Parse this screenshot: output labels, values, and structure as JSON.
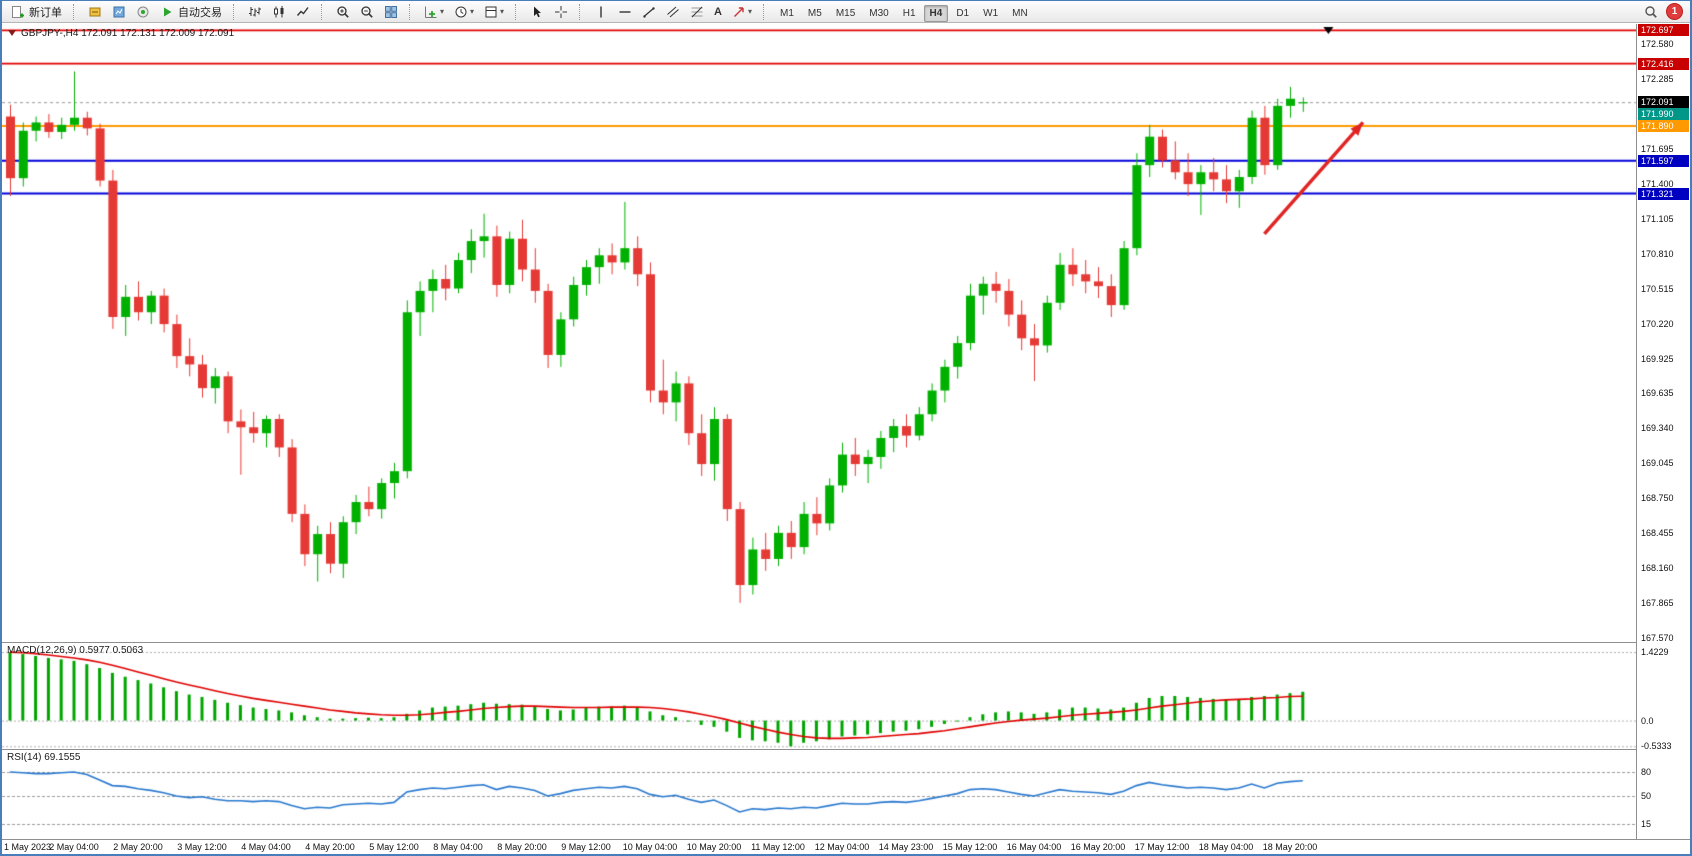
{
  "toolbar": {
    "new_order_label": "新订单",
    "autotrade_label": "自动交易",
    "text_tool_label": "A",
    "timeframes": [
      "M1",
      "M5",
      "M15",
      "M30",
      "H1",
      "H4",
      "D1",
      "W1",
      "MN"
    ],
    "active_timeframe": "H4",
    "notification_count": "1"
  },
  "chart_data": [
    {
      "type": "candlestick",
      "title": "GBPJPY-,H4",
      "ohlc_text": "172.091 172.131 172.009 172.091",
      "colors": {
        "up": "#00b000",
        "down": "#e53935"
      },
      "y_range": [
        167.54,
        172.75
      ],
      "y_ticks": [
        "172.580",
        "172.285",
        "171.990",
        "171.695",
        "171.400",
        "171.105",
        "170.810",
        "170.515",
        "170.220",
        "169.925",
        "169.635",
        "169.340",
        "169.045",
        "168.750",
        "168.455",
        "168.160",
        "167.865",
        "167.570"
      ],
      "hlines": [
        {
          "price": 172.697,
          "color": "#e00000",
          "tag_bg": "#c80000",
          "label": "172.697"
        },
        {
          "price": 172.416,
          "color": "#e00000",
          "tag_bg": "#c80000",
          "label": "172.416"
        },
        {
          "price": 171.89,
          "color": "#ff9900",
          "tag_bg": "#ff9900",
          "label": "171.890"
        },
        {
          "price": 171.597,
          "color": "#0000d8",
          "tag_bg": "#0000c0",
          "label": "171.597"
        },
        {
          "price": 171.321,
          "color": "#0000d8",
          "tag_bg": "#0000c0",
          "label": "171.321"
        }
      ],
      "current_price": {
        "value": 172.091,
        "label": "172.091",
        "tag_bg": "#000000"
      },
      "bid_tag": {
        "value": 171.99,
        "label": "171.990",
        "tag_bg": "#009688"
      },
      "arrow": {
        "from": [
          98,
          170.98
        ],
        "to": [
          105.7,
          171.92
        ],
        "color": "#e02424"
      },
      "shift_marker_index": 103,
      "x_label_step": 5,
      "x_labels": [
        "1 May 2023",
        "2 May 04:00",
        "2 May 20:00",
        "3 May 12:00",
        "4 May 04:00",
        "4 May 20:00",
        "5 May 12:00",
        "8 May 04:00",
        "8 May 20:00",
        "9 May 12:00",
        "10 May 04:00",
        "10 May 20:00",
        "11 May 12:00",
        "12 May 04:00",
        "14 May 23:00",
        "15 May 12:00",
        "16 May 04:00",
        "16 May 20:00",
        "17 May 12:00",
        "18 May 04:00",
        "18 May 20:00"
      ],
      "ohlc": [
        [
          171.97,
          172.07,
          171.3,
          171.45
        ],
        [
          171.45,
          171.92,
          171.38,
          171.85
        ],
        [
          171.85,
          171.97,
          171.76,
          171.92
        ],
        [
          171.92,
          171.99,
          171.79,
          171.84
        ],
        [
          171.84,
          171.96,
          171.78,
          171.9
        ],
        [
          171.9,
          172.35,
          171.85,
          171.96
        ],
        [
          171.96,
          172.01,
          171.81,
          171.87
        ],
        [
          171.87,
          171.91,
          171.38,
          171.43
        ],
        [
          171.43,
          171.52,
          170.18,
          170.28
        ],
        [
          170.28,
          170.55,
          170.12,
          170.45
        ],
        [
          170.45,
          170.58,
          170.25,
          170.32
        ],
        [
          170.32,
          170.5,
          170.22,
          170.46
        ],
        [
          170.46,
          170.52,
          170.15,
          170.22
        ],
        [
          170.22,
          170.3,
          169.85,
          169.95
        ],
        [
          169.95,
          170.1,
          169.78,
          169.88
        ],
        [
          169.88,
          169.96,
          169.6,
          169.68
        ],
        [
          169.68,
          169.85,
          169.55,
          169.78
        ],
        [
          169.78,
          169.82,
          169.3,
          169.4
        ],
        [
          169.4,
          169.5,
          168.95,
          169.35
        ],
        [
          169.35,
          169.48,
          169.22,
          169.3
        ],
        [
          169.3,
          169.45,
          169.18,
          169.42
        ],
        [
          169.42,
          169.46,
          169.1,
          169.18
        ],
        [
          169.18,
          169.25,
          168.55,
          168.62
        ],
        [
          168.62,
          168.7,
          168.18,
          168.28
        ],
        [
          168.28,
          168.52,
          168.05,
          168.45
        ],
        [
          168.45,
          168.55,
          168.12,
          168.2
        ],
        [
          168.2,
          168.6,
          168.08,
          168.55
        ],
        [
          168.55,
          168.78,
          168.45,
          168.72
        ],
        [
          168.72,
          168.85,
          168.6,
          168.66
        ],
        [
          168.66,
          168.92,
          168.58,
          168.88
        ],
        [
          168.88,
          169.05,
          168.75,
          168.98
        ],
        [
          168.98,
          170.42,
          168.92,
          170.32
        ],
        [
          170.32,
          170.58,
          170.12,
          170.5
        ],
        [
          170.5,
          170.68,
          170.32,
          170.6
        ],
        [
          170.6,
          170.72,
          170.42,
          170.52
        ],
        [
          170.52,
          170.82,
          170.48,
          170.76
        ],
        [
          170.76,
          171.02,
          170.65,
          170.92
        ],
        [
          170.92,
          171.15,
          170.78,
          170.96
        ],
        [
          170.96,
          171.05,
          170.45,
          170.55
        ],
        [
          170.55,
          171.0,
          170.48,
          170.94
        ],
        [
          170.94,
          171.1,
          170.58,
          170.68
        ],
        [
          170.68,
          170.86,
          170.4,
          170.5
        ],
        [
          170.5,
          170.56,
          169.85,
          169.96
        ],
        [
          169.96,
          170.32,
          169.86,
          170.26
        ],
        [
          170.26,
          170.62,
          170.2,
          170.55
        ],
        [
          170.55,
          170.76,
          170.46,
          170.7
        ],
        [
          170.7,
          170.86,
          170.56,
          170.8
        ],
        [
          170.8,
          170.9,
          170.64,
          170.74
        ],
        [
          170.74,
          171.25,
          170.68,
          170.86
        ],
        [
          170.86,
          170.96,
          170.54,
          170.64
        ],
        [
          170.64,
          170.74,
          169.56,
          169.66
        ],
        [
          169.66,
          169.92,
          169.46,
          169.56
        ],
        [
          169.56,
          169.82,
          169.4,
          169.72
        ],
        [
          169.72,
          169.78,
          169.2,
          169.3
        ],
        [
          169.3,
          169.46,
          168.94,
          169.04
        ],
        [
          169.04,
          169.52,
          168.9,
          169.42
        ],
        [
          169.42,
          169.46,
          168.56,
          168.66
        ],
        [
          168.66,
          168.72,
          167.87,
          168.02
        ],
        [
          168.02,
          168.42,
          167.94,
          168.32
        ],
        [
          168.32,
          168.46,
          168.14,
          168.24
        ],
        [
          168.24,
          168.52,
          168.18,
          168.46
        ],
        [
          168.46,
          168.56,
          168.24,
          168.34
        ],
        [
          168.34,
          168.72,
          168.28,
          168.62
        ],
        [
          168.62,
          168.76,
          168.44,
          168.54
        ],
        [
          168.54,
          168.92,
          168.48,
          168.86
        ],
        [
          168.86,
          169.22,
          168.8,
          169.12
        ],
        [
          169.12,
          169.26,
          168.94,
          169.04
        ],
        [
          169.04,
          169.16,
          168.88,
          169.1
        ],
        [
          169.1,
          169.32,
          169.0,
          169.26
        ],
        [
          169.26,
          169.42,
          169.14,
          169.36
        ],
        [
          169.36,
          169.46,
          169.18,
          169.28
        ],
        [
          169.28,
          169.52,
          169.24,
          169.46
        ],
        [
          169.46,
          169.72,
          169.4,
          169.66
        ],
        [
          169.66,
          169.92,
          169.56,
          169.86
        ],
        [
          169.86,
          170.12,
          169.76,
          170.06
        ],
        [
          170.06,
          170.56,
          170.0,
          170.46
        ],
        [
          170.46,
          170.62,
          170.3,
          170.56
        ],
        [
          170.56,
          170.66,
          170.4,
          170.5
        ],
        [
          170.5,
          170.6,
          170.2,
          170.3
        ],
        [
          170.3,
          170.42,
          170.0,
          170.1
        ],
        [
          170.1,
          170.22,
          169.74,
          170.04
        ],
        [
          170.04,
          170.46,
          169.98,
          170.4
        ],
        [
          170.4,
          170.82,
          170.34,
          170.72
        ],
        [
          170.72,
          170.86,
          170.54,
          170.64
        ],
        [
          170.64,
          170.76,
          170.48,
          170.58
        ],
        [
          170.58,
          170.7,
          170.44,
          170.54
        ],
        [
          170.54,
          170.64,
          170.28,
          170.38
        ],
        [
          170.38,
          170.92,
          170.34,
          170.86
        ],
        [
          170.86,
          171.66,
          170.8,
          171.56
        ],
        [
          171.56,
          171.9,
          171.46,
          171.8
        ],
        [
          171.8,
          171.86,
          171.54,
          171.6
        ],
        [
          171.6,
          171.76,
          171.44,
          171.5
        ],
        [
          171.5,
          171.66,
          171.3,
          171.4
        ],
        [
          171.4,
          171.56,
          171.14,
          171.5
        ],
        [
          171.5,
          171.62,
          171.34,
          171.44
        ],
        [
          171.44,
          171.56,
          171.24,
          171.34
        ],
        [
          171.34,
          171.52,
          171.2,
          171.46
        ],
        [
          171.46,
          172.02,
          171.4,
          171.96
        ],
        [
          171.96,
          172.06,
          171.48,
          171.56
        ],
        [
          171.56,
          172.12,
          171.52,
          172.06
        ],
        [
          172.06,
          172.22,
          171.96,
          172.12
        ],
        [
          172.091,
          172.131,
          172.009,
          172.091
        ]
      ]
    },
    {
      "type": "bar",
      "label": "MACD(12,26,9)",
      "value_main": "0.5977",
      "value_signal": "0.5063",
      "colors": {
        "histogram": "#00a400",
        "signal": "#e00000"
      },
      "y_range": [
        -0.59,
        1.61
      ],
      "y_ticks": [
        "1.4229",
        "0.0",
        "-0.5333"
      ],
      "level_lines": [
        1.4229,
        -0.5333
      ],
      "histogram": [
        1.4229,
        1.38,
        1.34,
        1.3,
        1.27,
        1.24,
        1.17,
        1.09,
        0.99,
        0.91,
        0.84,
        0.77,
        0.69,
        0.61,
        0.54,
        0.49,
        0.43,
        0.37,
        0.32,
        0.27,
        0.24,
        0.21,
        0.17,
        0.11,
        0.07,
        0.04,
        0.04,
        0.05,
        0.06,
        0.05,
        0.07,
        0.14,
        0.21,
        0.27,
        0.29,
        0.31,
        0.34,
        0.37,
        0.35,
        0.34,
        0.33,
        0.29,
        0.24,
        0.21,
        0.23,
        0.26,
        0.29,
        0.29,
        0.31,
        0.27,
        0.19,
        0.11,
        0.07,
        -0.01,
        -0.09,
        -0.13,
        -0.23,
        -0.36,
        -0.41,
        -0.43,
        -0.46,
        -0.5333,
        -0.46,
        -0.43,
        -0.39,
        -0.33,
        -0.31,
        -0.29,
        -0.26,
        -0.23,
        -0.21,
        -0.18,
        -0.13,
        -0.07,
        -0.01,
        0.07,
        0.13,
        0.17,
        0.19,
        0.17,
        0.14,
        0.17,
        0.23,
        0.27,
        0.27,
        0.25,
        0.23,
        0.27,
        0.37,
        0.47,
        0.51,
        0.51,
        0.49,
        0.47,
        0.45,
        0.43,
        0.44,
        0.49,
        0.51,
        0.54,
        0.57,
        0.5977
      ],
      "signal": [
        1.42,
        1.41,
        1.39,
        1.36,
        1.33,
        1.3,
        1.26,
        1.21,
        1.15,
        1.08,
        1.01,
        0.94,
        0.87,
        0.8,
        0.74,
        0.68,
        0.62,
        0.56,
        0.51,
        0.46,
        0.42,
        0.38,
        0.34,
        0.3,
        0.26,
        0.22,
        0.19,
        0.16,
        0.14,
        0.12,
        0.11,
        0.11,
        0.12,
        0.14,
        0.17,
        0.19,
        0.22,
        0.25,
        0.27,
        0.29,
        0.3,
        0.3,
        0.29,
        0.28,
        0.27,
        0.27,
        0.27,
        0.28,
        0.28,
        0.28,
        0.27,
        0.25,
        0.22,
        0.18,
        0.13,
        0.08,
        0.02,
        -0.05,
        -0.12,
        -0.18,
        -0.24,
        -0.29,
        -0.33,
        -0.36,
        -0.37,
        -0.37,
        -0.36,
        -0.35,
        -0.33,
        -0.31,
        -0.29,
        -0.27,
        -0.24,
        -0.21,
        -0.17,
        -0.13,
        -0.09,
        -0.05,
        -0.02,
        0.01,
        0.03,
        0.05,
        0.08,
        0.11,
        0.13,
        0.15,
        0.17,
        0.19,
        0.22,
        0.26,
        0.3,
        0.33,
        0.36,
        0.39,
        0.41,
        0.43,
        0.44,
        0.45,
        0.47,
        0.48,
        0.5,
        0.5063
      ]
    },
    {
      "type": "line",
      "label": "RSI(14)",
      "value": "69.1555",
      "color": "#2878ce",
      "y_range": [
        0,
        100
      ],
      "levels": [
        80,
        50,
        15
      ],
      "y_ticks": [
        "80",
        "50",
        "15"
      ],
      "values": [
        80,
        79,
        78,
        78,
        79,
        80,
        77,
        70,
        63,
        62,
        59,
        57,
        54,
        50,
        48,
        49,
        46,
        44,
        44,
        43,
        44,
        43,
        38,
        34,
        36,
        35,
        39,
        40,
        41,
        40,
        42,
        55,
        58,
        60,
        59,
        61,
        63,
        64,
        58,
        62,
        60,
        57,
        50,
        53,
        57,
        59,
        61,
        60,
        62,
        59,
        52,
        49,
        51,
        46,
        42,
        45,
        38,
        30,
        34,
        33,
        35,
        34,
        36,
        35,
        38,
        41,
        40,
        40,
        42,
        43,
        42,
        44,
        47,
        50,
        53,
        58,
        59,
        58,
        55,
        52,
        50,
        54,
        58,
        56,
        55,
        54,
        52,
        56,
        63,
        67,
        64,
        62,
        60,
        61,
        60,
        58,
        60,
        65,
        60,
        66,
        68,
        69.1555
      ]
    }
  ]
}
